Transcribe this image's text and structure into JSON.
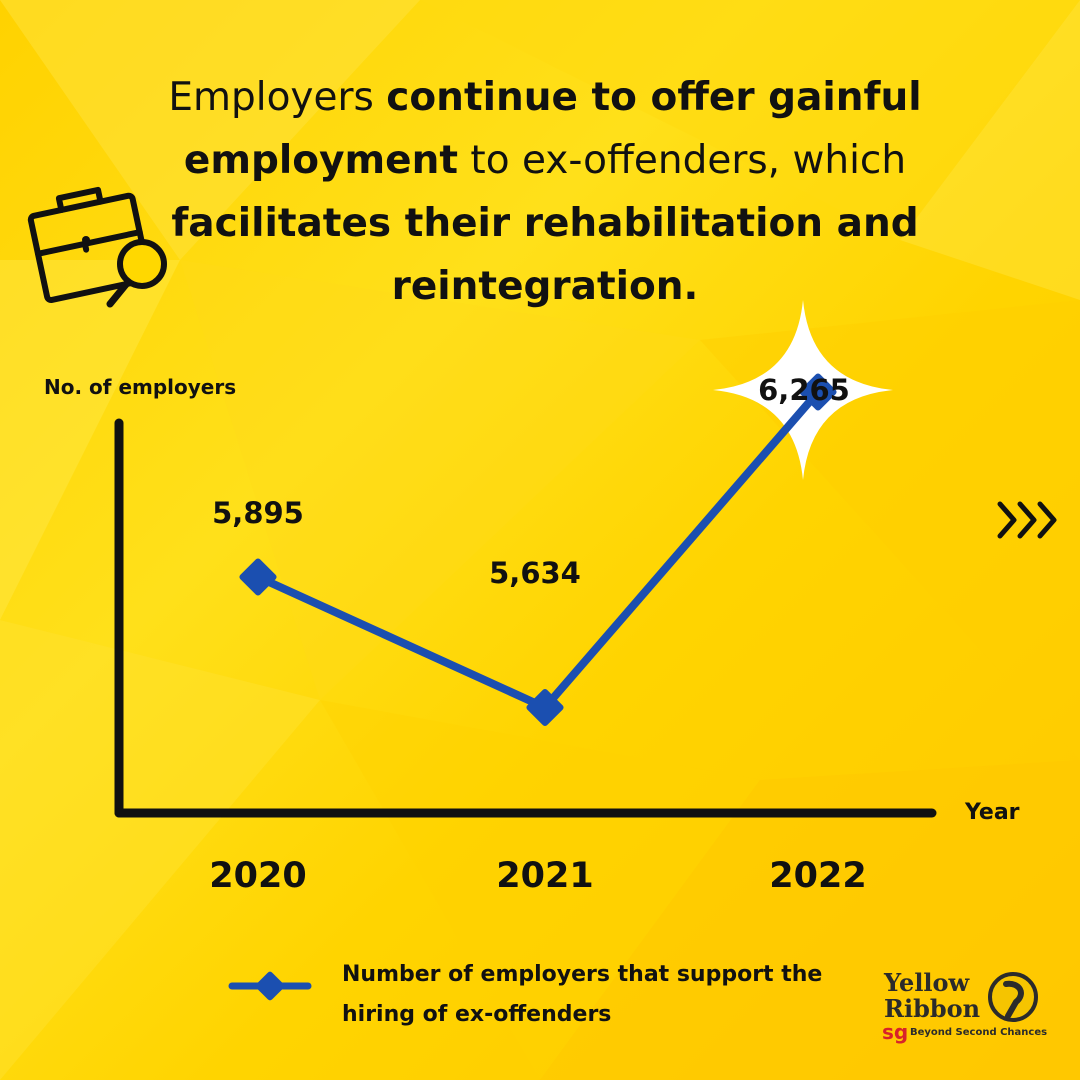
{
  "headline": {
    "part1": "Employers ",
    "part2": "continue to offer gainful employment",
    "part3": " to ex-offenders, which ",
    "part4": "facilitates their rehabilitation and reintegration."
  },
  "icons": {
    "briefcase": "briefcase-search-icon",
    "next": "triple-chevron-right-icon",
    "highlight": "sparkle-icon"
  },
  "colors": {
    "background": "#FFD700",
    "line": "#1B4FB0",
    "marker": "#1B4FB0",
    "axis": "#111111",
    "text": "#111111",
    "highlight": "#FFFFFF",
    "logo_sg": "#D8232A"
  },
  "chart_data": {
    "type": "line",
    "ylabel": "No. of employers",
    "xlabel": "Year",
    "categories": [
      "2020",
      "2021",
      "2022"
    ],
    "series": [
      {
        "name": "Number of employers that support the hiring of ex-offenders",
        "values": [
          5895,
          5634,
          6265
        ]
      }
    ],
    "data_labels": [
      "5,895",
      "5,634",
      "6,265"
    ],
    "highlighted_point": "2022",
    "grid": false,
    "legend_position": "bottom",
    "y_ticks_shown": false
  },
  "legend": {
    "label": "Number of employers that support the hiring of ex-offenders"
  },
  "logo": {
    "line1": "Yellow",
    "line2": "Ribbon",
    "sg": "sg",
    "tagline": "Beyond Second Chances"
  }
}
